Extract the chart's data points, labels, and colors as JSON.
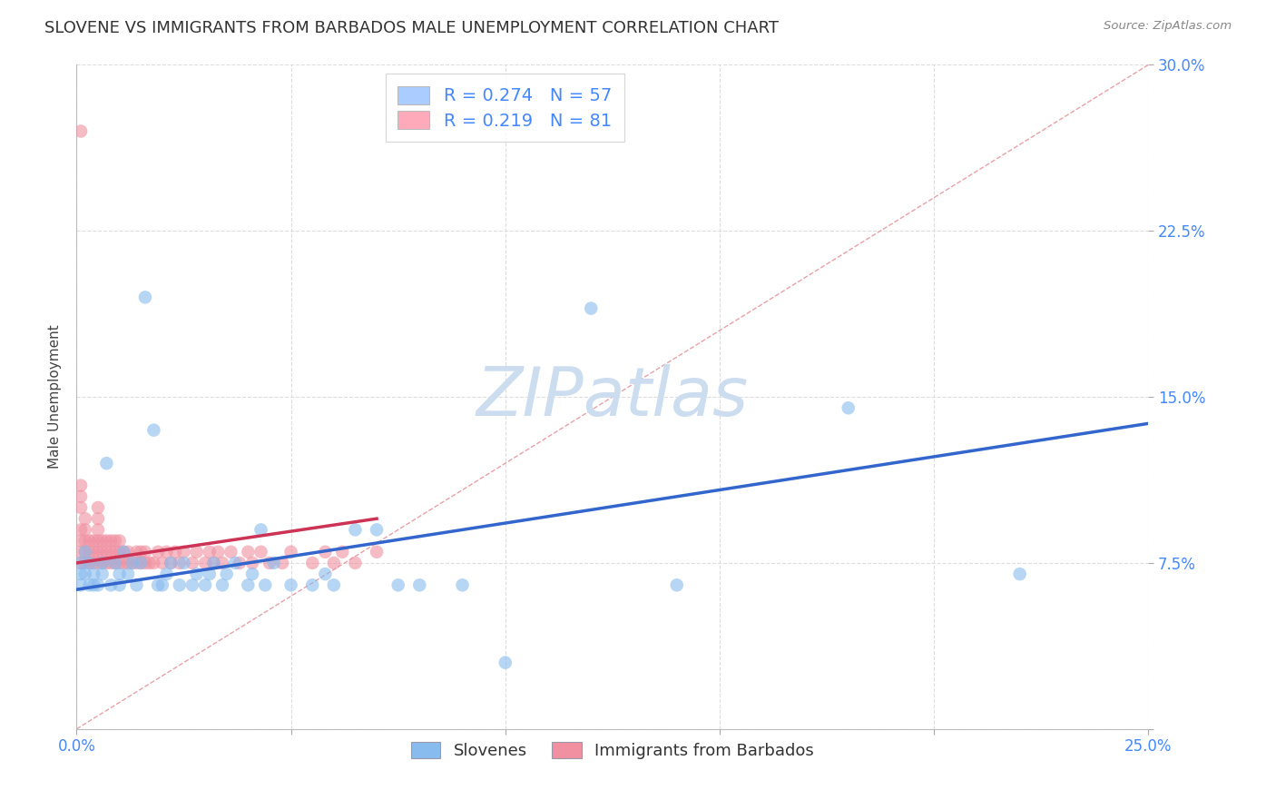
{
  "title": "SLOVENE VS IMMIGRANTS FROM BARBADOS MALE UNEMPLOYMENT CORRELATION CHART",
  "source": "Source: ZipAtlas.com",
  "ylabel": "Male Unemployment",
  "xlim": [
    0.0,
    0.25
  ],
  "ylim": [
    0.0,
    0.3
  ],
  "xtick_positions": [
    0.0,
    0.05,
    0.1,
    0.15,
    0.2,
    0.25
  ],
  "xtick_labels": [
    "0.0%",
    "",
    "",
    "",
    "",
    "25.0%"
  ],
  "ytick_positions": [
    0.0,
    0.075,
    0.15,
    0.225,
    0.3
  ],
  "ytick_labels": [
    "",
    "7.5%",
    "15.0%",
    "22.5%",
    "30.0%"
  ],
  "watermark": "ZIPatlas",
  "watermark_color": "#ccddf0",
  "slovenes_color": "#88bbee",
  "barbados_color": "#f090a0",
  "regression_slovenes_color": "#3366cc",
  "regression_barbados_color": "#cc3355",
  "diagonal_color": "#ddaaaa",
  "grid_color": "#dddddd",
  "title_fontsize": 13,
  "axis_label_fontsize": 11,
  "tick_fontsize": 12,
  "tick_color": "#4488ff",
  "background_color": "#ffffff",
  "legend_r1": "R = 0.274",
  "legend_n1": "N = 57",
  "legend_r2": "R = 0.219",
  "legend_n2": "N = 81",
  "legend_color1": "#aaccff",
  "legend_color2": "#ffaabb",
  "slovenes_x": [
    0.001,
    0.001,
    0.001,
    0.002,
    0.002,
    0.003,
    0.003,
    0.004,
    0.004,
    0.005,
    0.006,
    0.006,
    0.007,
    0.008,
    0.009,
    0.01,
    0.01,
    0.011,
    0.012,
    0.013,
    0.014,
    0.015,
    0.016,
    0.018,
    0.019,
    0.02,
    0.021,
    0.022,
    0.024,
    0.025,
    0.027,
    0.028,
    0.03,
    0.031,
    0.032,
    0.034,
    0.035,
    0.037,
    0.04,
    0.041,
    0.043,
    0.044,
    0.046,
    0.05,
    0.055,
    0.058,
    0.06,
    0.065,
    0.07,
    0.075,
    0.08,
    0.09,
    0.1,
    0.12,
    0.14,
    0.18,
    0.22
  ],
  "slovenes_y": [
    0.07,
    0.075,
    0.065,
    0.08,
    0.07,
    0.065,
    0.075,
    0.065,
    0.07,
    0.065,
    0.075,
    0.07,
    0.12,
    0.065,
    0.075,
    0.065,
    0.07,
    0.08,
    0.07,
    0.075,
    0.065,
    0.075,
    0.195,
    0.135,
    0.065,
    0.065,
    0.07,
    0.075,
    0.065,
    0.075,
    0.065,
    0.07,
    0.065,
    0.07,
    0.075,
    0.065,
    0.07,
    0.075,
    0.065,
    0.07,
    0.09,
    0.065,
    0.075,
    0.065,
    0.065,
    0.07,
    0.065,
    0.09,
    0.09,
    0.065,
    0.065,
    0.065,
    0.03,
    0.19,
    0.065,
    0.145,
    0.07
  ],
  "barbados_x": [
    0.001,
    0.001,
    0.001,
    0.001,
    0.001,
    0.001,
    0.001,
    0.002,
    0.002,
    0.002,
    0.002,
    0.002,
    0.003,
    0.003,
    0.003,
    0.004,
    0.004,
    0.004,
    0.005,
    0.005,
    0.005,
    0.005,
    0.005,
    0.005,
    0.006,
    0.006,
    0.006,
    0.007,
    0.007,
    0.007,
    0.008,
    0.008,
    0.008,
    0.009,
    0.009,
    0.009,
    0.01,
    0.01,
    0.01,
    0.011,
    0.011,
    0.012,
    0.012,
    0.013,
    0.014,
    0.014,
    0.015,
    0.015,
    0.016,
    0.016,
    0.017,
    0.018,
    0.019,
    0.02,
    0.021,
    0.022,
    0.023,
    0.024,
    0.025,
    0.027,
    0.028,
    0.03,
    0.031,
    0.032,
    0.033,
    0.034,
    0.036,
    0.038,
    0.04,
    0.041,
    0.043,
    0.045,
    0.048,
    0.05,
    0.055,
    0.058,
    0.06,
    0.062,
    0.065,
    0.07,
    0.001
  ],
  "barbados_y": [
    0.075,
    0.08,
    0.085,
    0.09,
    0.1,
    0.105,
    0.11,
    0.075,
    0.08,
    0.085,
    0.09,
    0.095,
    0.075,
    0.08,
    0.085,
    0.075,
    0.08,
    0.085,
    0.075,
    0.08,
    0.085,
    0.09,
    0.095,
    0.1,
    0.075,
    0.08,
    0.085,
    0.075,
    0.08,
    0.085,
    0.075,
    0.08,
    0.085,
    0.075,
    0.08,
    0.085,
    0.075,
    0.08,
    0.085,
    0.075,
    0.08,
    0.075,
    0.08,
    0.075,
    0.075,
    0.08,
    0.075,
    0.08,
    0.075,
    0.08,
    0.075,
    0.075,
    0.08,
    0.075,
    0.08,
    0.075,
    0.08,
    0.075,
    0.08,
    0.075,
    0.08,
    0.075,
    0.08,
    0.075,
    0.08,
    0.075,
    0.08,
    0.075,
    0.08,
    0.075,
    0.08,
    0.075,
    0.075,
    0.08,
    0.075,
    0.08,
    0.075,
    0.08,
    0.075,
    0.08,
    0.27
  ]
}
